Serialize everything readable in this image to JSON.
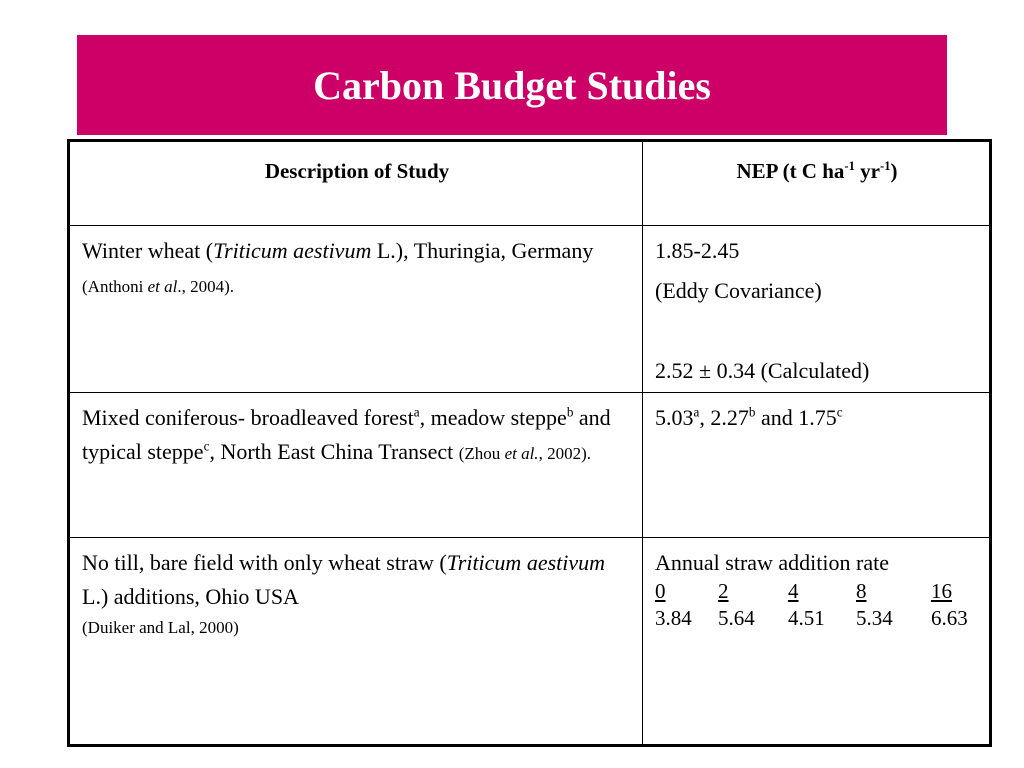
{
  "title": "Carbon Budget Studies",
  "headers": {
    "col1": "Description of Study",
    "col2_pre": "NEP (t C ha",
    "col2_sup1": "-1",
    "col2_mid": " yr",
    "col2_sup2": "-1",
    "col2_post": ")"
  },
  "rows": [
    {
      "desc_a": "Winter wheat (",
      "desc_italic": "Triticum aestivum",
      "desc_b": " L.), Thuringia, Germany ",
      "cite_a": "(Anthoni ",
      "cite_italic": "et al",
      "cite_b": "., 2004).",
      "nep_line1": "1.85-2.45",
      "nep_line2": "(Eddy Covariance)",
      "nep_line3": "2.52 ± 0.34 (Calculated)"
    },
    {
      "desc_a": "Mixed coniferous- broadleaved forest",
      "sup_a": "a",
      "desc_b": ", meadow steppe",
      "sup_b": "b",
      "desc_c": " and typical steppe",
      "sup_c": "c",
      "desc_d": ", North East China Transect ",
      "cite_a": "(Zhou ",
      "cite_italic": "et al.",
      "cite_b": ", 2002).",
      "nep_v1": "5.03",
      "nep_s1": "a",
      "nep_sep1": ", 2.27",
      "nep_s2": "b",
      "nep_sep2": " and 1.75",
      "nep_s3": "c"
    },
    {
      "desc_a": "No till, bare field with only wheat straw (",
      "desc_italic": "Triticum aestivum",
      "desc_b": " L.) additions, Ohio USA",
      "cite": "(Duiker and Lal, 2000)",
      "nep_label": "Annual straw addition rate",
      "rates": [
        "0",
        "2",
        "4",
        "8",
        "16"
      ],
      "values": [
        "3.84",
        "5.64",
        "4.51",
        "5.34",
        "6.63"
      ]
    }
  ]
}
